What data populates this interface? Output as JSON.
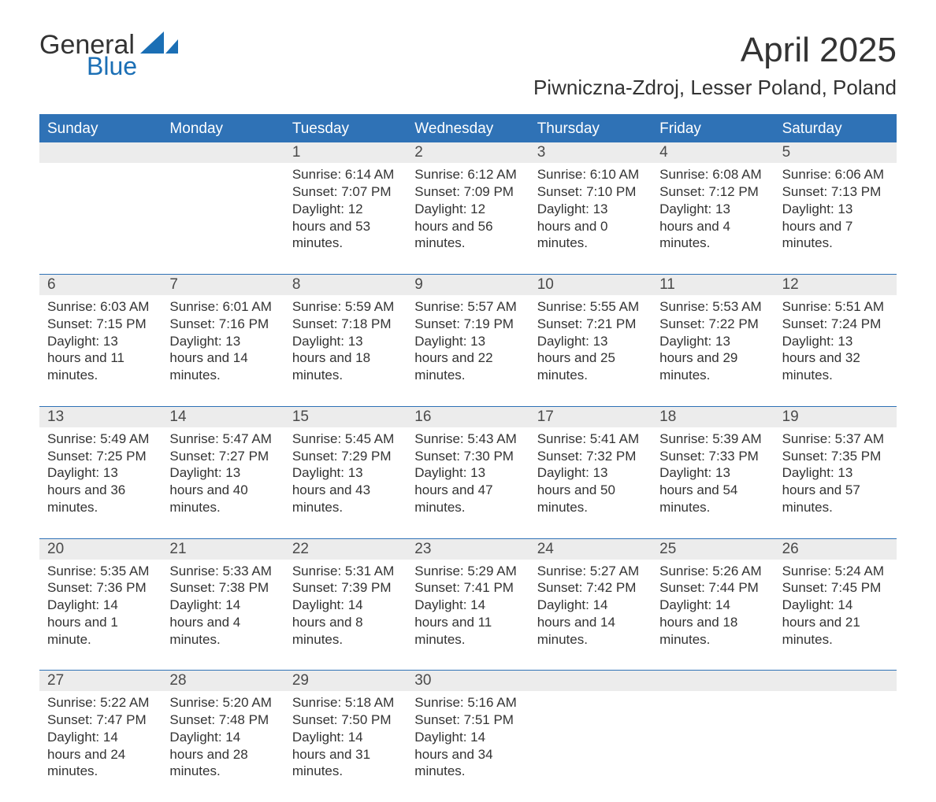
{
  "logo": {
    "general": "General",
    "blue": "Blue",
    "mark_color": "#1b6fb5"
  },
  "title": "April 2025",
  "location": "Piwniczna-Zdroj, Lesser Poland, Poland",
  "colors": {
    "header_bg": "#2f72b6",
    "header_text": "#ffffff",
    "daynum_bg": "#ececec",
    "text": "#333333",
    "rule": "#2f72b6"
  },
  "days_of_week": [
    "Sunday",
    "Monday",
    "Tuesday",
    "Wednesday",
    "Thursday",
    "Friday",
    "Saturday"
  ],
  "weeks": [
    [
      {
        "num": "",
        "lines": []
      },
      {
        "num": "",
        "lines": []
      },
      {
        "num": "1",
        "lines": [
          "Sunrise: 6:14 AM",
          "Sunset: 7:07 PM",
          "Daylight: 12 hours and 53 minutes."
        ]
      },
      {
        "num": "2",
        "lines": [
          "Sunrise: 6:12 AM",
          "Sunset: 7:09 PM",
          "Daylight: 12 hours and 56 minutes."
        ]
      },
      {
        "num": "3",
        "lines": [
          "Sunrise: 6:10 AM",
          "Sunset: 7:10 PM",
          "Daylight: 13 hours and 0 minutes."
        ]
      },
      {
        "num": "4",
        "lines": [
          "Sunrise: 6:08 AM",
          "Sunset: 7:12 PM",
          "Daylight: 13 hours and 4 minutes."
        ]
      },
      {
        "num": "5",
        "lines": [
          "Sunrise: 6:06 AM",
          "Sunset: 7:13 PM",
          "Daylight: 13 hours and 7 minutes."
        ]
      }
    ],
    [
      {
        "num": "6",
        "lines": [
          "Sunrise: 6:03 AM",
          "Sunset: 7:15 PM",
          "Daylight: 13 hours and 11 minutes."
        ]
      },
      {
        "num": "7",
        "lines": [
          "Sunrise: 6:01 AM",
          "Sunset: 7:16 PM",
          "Daylight: 13 hours and 14 minutes."
        ]
      },
      {
        "num": "8",
        "lines": [
          "Sunrise: 5:59 AM",
          "Sunset: 7:18 PM",
          "Daylight: 13 hours and 18 minutes."
        ]
      },
      {
        "num": "9",
        "lines": [
          "Sunrise: 5:57 AM",
          "Sunset: 7:19 PM",
          "Daylight: 13 hours and 22 minutes."
        ]
      },
      {
        "num": "10",
        "lines": [
          "Sunrise: 5:55 AM",
          "Sunset: 7:21 PM",
          "Daylight: 13 hours and 25 minutes."
        ]
      },
      {
        "num": "11",
        "lines": [
          "Sunrise: 5:53 AM",
          "Sunset: 7:22 PM",
          "Daylight: 13 hours and 29 minutes."
        ]
      },
      {
        "num": "12",
        "lines": [
          "Sunrise: 5:51 AM",
          "Sunset: 7:24 PM",
          "Daylight: 13 hours and 32 minutes."
        ]
      }
    ],
    [
      {
        "num": "13",
        "lines": [
          "Sunrise: 5:49 AM",
          "Sunset: 7:25 PM",
          "Daylight: 13 hours and 36 minutes."
        ]
      },
      {
        "num": "14",
        "lines": [
          "Sunrise: 5:47 AM",
          "Sunset: 7:27 PM",
          "Daylight: 13 hours and 40 minutes."
        ]
      },
      {
        "num": "15",
        "lines": [
          "Sunrise: 5:45 AM",
          "Sunset: 7:29 PM",
          "Daylight: 13 hours and 43 minutes."
        ]
      },
      {
        "num": "16",
        "lines": [
          "Sunrise: 5:43 AM",
          "Sunset: 7:30 PM",
          "Daylight: 13 hours and 47 minutes."
        ]
      },
      {
        "num": "17",
        "lines": [
          "Sunrise: 5:41 AM",
          "Sunset: 7:32 PM",
          "Daylight: 13 hours and 50 minutes."
        ]
      },
      {
        "num": "18",
        "lines": [
          "Sunrise: 5:39 AM",
          "Sunset: 7:33 PM",
          "Daylight: 13 hours and 54 minutes."
        ]
      },
      {
        "num": "19",
        "lines": [
          "Sunrise: 5:37 AM",
          "Sunset: 7:35 PM",
          "Daylight: 13 hours and 57 minutes."
        ]
      }
    ],
    [
      {
        "num": "20",
        "lines": [
          "Sunrise: 5:35 AM",
          "Sunset: 7:36 PM",
          "Daylight: 14 hours and 1 minute."
        ]
      },
      {
        "num": "21",
        "lines": [
          "Sunrise: 5:33 AM",
          "Sunset: 7:38 PM",
          "Daylight: 14 hours and 4 minutes."
        ]
      },
      {
        "num": "22",
        "lines": [
          "Sunrise: 5:31 AM",
          "Sunset: 7:39 PM",
          "Daylight: 14 hours and 8 minutes."
        ]
      },
      {
        "num": "23",
        "lines": [
          "Sunrise: 5:29 AM",
          "Sunset: 7:41 PM",
          "Daylight: 14 hours and 11 minutes."
        ]
      },
      {
        "num": "24",
        "lines": [
          "Sunrise: 5:27 AM",
          "Sunset: 7:42 PM",
          "Daylight: 14 hours and 14 minutes."
        ]
      },
      {
        "num": "25",
        "lines": [
          "Sunrise: 5:26 AM",
          "Sunset: 7:44 PM",
          "Daylight: 14 hours and 18 minutes."
        ]
      },
      {
        "num": "26",
        "lines": [
          "Sunrise: 5:24 AM",
          "Sunset: 7:45 PM",
          "Daylight: 14 hours and 21 minutes."
        ]
      }
    ],
    [
      {
        "num": "27",
        "lines": [
          "Sunrise: 5:22 AM",
          "Sunset: 7:47 PM",
          "Daylight: 14 hours and 24 minutes."
        ]
      },
      {
        "num": "28",
        "lines": [
          "Sunrise: 5:20 AM",
          "Sunset: 7:48 PM",
          "Daylight: 14 hours and 28 minutes."
        ]
      },
      {
        "num": "29",
        "lines": [
          "Sunrise: 5:18 AM",
          "Sunset: 7:50 PM",
          "Daylight: 14 hours and 31 minutes."
        ]
      },
      {
        "num": "30",
        "lines": [
          "Sunrise: 5:16 AM",
          "Sunset: 7:51 PM",
          "Daylight: 14 hours and 34 minutes."
        ]
      },
      {
        "num": "",
        "lines": []
      },
      {
        "num": "",
        "lines": []
      },
      {
        "num": "",
        "lines": []
      }
    ]
  ]
}
